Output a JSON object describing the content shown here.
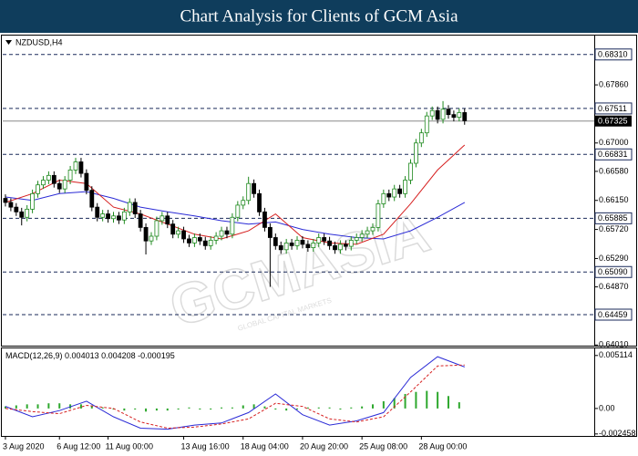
{
  "header": {
    "title": "Chart Analysis for Clients of GCM Asia"
  },
  "watermark": {
    "brand": "GCMASIA",
    "tagline": "GLOBAL CAPITAL MARKETS"
  },
  "chart_data": [
    {
      "type": "candlestick",
      "symbol": "NZDUSD,H4",
      "bull_color": "#1f8a1f",
      "bear_color": "#000000",
      "open": [
        0.6618,
        0.6612,
        0.6605,
        0.6598,
        0.659,
        0.6602,
        0.6625,
        0.6638,
        0.6645,
        0.6652,
        0.664,
        0.6632,
        0.6645,
        0.666,
        0.6672,
        0.6655,
        0.663,
        0.6605,
        0.659,
        0.6595,
        0.6588,
        0.6592,
        0.6586,
        0.6598,
        0.6612,
        0.6595,
        0.6575,
        0.6555,
        0.6562,
        0.6585,
        0.6592,
        0.658,
        0.6565,
        0.657,
        0.6558,
        0.6552,
        0.656,
        0.6555,
        0.6548,
        0.6556,
        0.6562,
        0.657,
        0.6565,
        0.659,
        0.6608,
        0.6615,
        0.664,
        0.6625,
        0.6598,
        0.6575,
        0.656,
        0.6548,
        0.6542,
        0.6552,
        0.6548,
        0.6556,
        0.655,
        0.6545,
        0.6552,
        0.656,
        0.6555,
        0.6548,
        0.6542,
        0.655,
        0.6547,
        0.6556,
        0.656,
        0.6565,
        0.657,
        0.6575,
        0.661,
        0.6625,
        0.662,
        0.6632,
        0.6625,
        0.6645,
        0.667,
        0.67,
        0.6715,
        0.674,
        0.6748,
        0.6735,
        0.675,
        0.6742,
        0.6738,
        0.6745
      ],
      "high": [
        0.6624,
        0.6618,
        0.6611,
        0.6604,
        0.6608,
        0.6631,
        0.6644,
        0.6651,
        0.6658,
        0.6658,
        0.6646,
        0.6651,
        0.6666,
        0.6678,
        0.6678,
        0.6661,
        0.6636,
        0.6611,
        0.6601,
        0.6601,
        0.6598,
        0.6598,
        0.6604,
        0.6618,
        0.6618,
        0.6601,
        0.6581,
        0.6568,
        0.6591,
        0.6598,
        0.6598,
        0.6586,
        0.6576,
        0.6576,
        0.6564,
        0.6566,
        0.6566,
        0.6561,
        0.6562,
        0.6568,
        0.6576,
        0.6576,
        0.6596,
        0.6614,
        0.6621,
        0.665,
        0.6646,
        0.6631,
        0.6604,
        0.6581,
        0.6566,
        0.6554,
        0.6558,
        0.6558,
        0.6562,
        0.6562,
        0.6556,
        0.6558,
        0.6566,
        0.6566,
        0.6561,
        0.6554,
        0.6556,
        0.6556,
        0.6562,
        0.6566,
        0.6571,
        0.6576,
        0.6581,
        0.6616,
        0.6631,
        0.6631,
        0.6638,
        0.6638,
        0.6651,
        0.6676,
        0.6706,
        0.6721,
        0.6746,
        0.6754,
        0.6754,
        0.6762,
        0.6756,
        0.6748,
        0.6751,
        0.6751
      ],
      "low": [
        0.6606,
        0.6599,
        0.6592,
        0.6578,
        0.6584,
        0.6596,
        0.6619,
        0.6632,
        0.6639,
        0.6634,
        0.6626,
        0.6626,
        0.6639,
        0.6654,
        0.6649,
        0.6624,
        0.6599,
        0.6584,
        0.6584,
        0.6582,
        0.6582,
        0.658,
        0.658,
        0.6592,
        0.6589,
        0.6569,
        0.6535,
        0.6549,
        0.6556,
        0.6579,
        0.6574,
        0.6559,
        0.6559,
        0.6552,
        0.6546,
        0.6546,
        0.6549,
        0.6542,
        0.6542,
        0.655,
        0.6556,
        0.6559,
        0.6559,
        0.6584,
        0.6602,
        0.6609,
        0.6619,
        0.6592,
        0.6569,
        0.6487,
        0.6542,
        0.6536,
        0.6536,
        0.6542,
        0.6542,
        0.6544,
        0.6539,
        0.6539,
        0.6546,
        0.6549,
        0.6542,
        0.6536,
        0.6536,
        0.6541,
        0.6541,
        0.655,
        0.6554,
        0.6559,
        0.6564,
        0.6569,
        0.6604,
        0.6614,
        0.6614,
        0.6619,
        0.6619,
        0.6639,
        0.6664,
        0.6694,
        0.6709,
        0.6734,
        0.6729,
        0.6729,
        0.6736,
        0.6732,
        0.6732,
        0.6727
      ],
      "close": [
        0.6612,
        0.6605,
        0.6598,
        0.659,
        0.6602,
        0.6625,
        0.6638,
        0.6645,
        0.6652,
        0.664,
        0.6632,
        0.6645,
        0.666,
        0.6672,
        0.6655,
        0.663,
        0.6605,
        0.659,
        0.6595,
        0.6588,
        0.6592,
        0.6586,
        0.6598,
        0.6612,
        0.6595,
        0.6575,
        0.6555,
        0.6562,
        0.6585,
        0.6592,
        0.658,
        0.6565,
        0.657,
        0.6558,
        0.6552,
        0.656,
        0.6555,
        0.6548,
        0.6556,
        0.6562,
        0.657,
        0.6565,
        0.659,
        0.6608,
        0.6615,
        0.664,
        0.6625,
        0.6598,
        0.6575,
        0.656,
        0.6548,
        0.6542,
        0.6552,
        0.6548,
        0.6556,
        0.655,
        0.6545,
        0.6552,
        0.656,
        0.6555,
        0.6548,
        0.6542,
        0.655,
        0.6547,
        0.6556,
        0.656,
        0.6565,
        0.657,
        0.6575,
        0.661,
        0.6625,
        0.662,
        0.6632,
        0.6625,
        0.6645,
        0.667,
        0.67,
        0.6715,
        0.674,
        0.6748,
        0.6735,
        0.675,
        0.6742,
        0.6738,
        0.6745,
        0.6733
      ],
      "series": [
        {
          "color": "#2b2bd6",
          "x": [
            0,
            5,
            10,
            15,
            20,
            25,
            30,
            35,
            40,
            45,
            50,
            55,
            60,
            65,
            70,
            75,
            80,
            85
          ],
          "values": [
            0.662,
            0.6615,
            0.6625,
            0.6628,
            0.6618,
            0.6605,
            0.6598,
            0.6592,
            0.6585,
            0.658,
            0.6583,
            0.6572,
            0.6565,
            0.656,
            0.6558,
            0.657,
            0.659,
            0.6612
          ]
        },
        {
          "color": "#d62020",
          "x": [
            0,
            5,
            10,
            15,
            20,
            25,
            30,
            35,
            40,
            45,
            50,
            55,
            60,
            65,
            70,
            75,
            80,
            85
          ],
          "values": [
            0.6612,
            0.6625,
            0.6645,
            0.664,
            0.6605,
            0.6595,
            0.658,
            0.6565,
            0.6558,
            0.657,
            0.6595,
            0.656,
            0.6552,
            0.655,
            0.6565,
            0.661,
            0.666,
            0.6697
          ]
        }
      ],
      "levels": [
        {
          "value": 0.6831,
          "label": "0.68310"
        },
        {
          "value": 0.67511,
          "label": "0.67511"
        },
        {
          "value": 0.66831,
          "label": "0.66831"
        },
        {
          "value": 0.65885,
          "label": "0.65885"
        },
        {
          "value": 0.6509,
          "label": "0.65090"
        },
        {
          "value": 0.64459,
          "label": "0.64459"
        }
      ],
      "current_price": 0.67325,
      "xlim": [
        -0.5,
        109
      ],
      "ylim": [
        0.64,
        0.6859
      ],
      "yticks": [
        {
          "value": 0.6786,
          "label": "0.67860"
        },
        {
          "value": 0.67,
          "label": "0.67000"
        },
        {
          "value": 0.6658,
          "label": "0.66580"
        },
        {
          "value": 0.6615,
          "label": "0.66150"
        },
        {
          "value": 0.6572,
          "label": "0.65720"
        },
        {
          "value": 0.6529,
          "label": "0.65290"
        },
        {
          "value": 0.6487,
          "label": "0.64870"
        },
        {
          "value": 0.6401,
          "label": "0.64010"
        }
      ]
    },
    {
      "type": "macd",
      "indicator": "MACD(12,26,9)",
      "readout": [
        0.004013,
        0.004208,
        -0.000195
      ],
      "histogram": {
        "color": "#2ea82e",
        "x": [
          0,
          2,
          4,
          6,
          8,
          10,
          12,
          14,
          16,
          18,
          20,
          22,
          24,
          26,
          28,
          30,
          32,
          34,
          36,
          38,
          40,
          42,
          44,
          46,
          48,
          50,
          52,
          54,
          56,
          58,
          60,
          62,
          64,
          66,
          68,
          70,
          72,
          74,
          76,
          78,
          80,
          82,
          84
        ],
        "values": [
          0.0002,
          0.0003,
          0.0004,
          0.0004,
          0.0005,
          0.0005,
          0.0004,
          0.0004,
          0.0003,
          0.0001,
          -0.0001,
          -0.0002,
          -0.0001,
          -0.0003,
          -0.0002,
          -0.0002,
          -0.0001,
          0.0001,
          -0.0001,
          -0.0001,
          0.0001,
          0.0001,
          0.0003,
          0.0004,
          0.0002,
          -0.0001,
          -0.0002,
          -0.0001,
          0.0001,
          0.0001,
          0.0001,
          -0.0001,
          0.0001,
          0.0002,
          0.0004,
          0.0007,
          0.001,
          0.0014,
          0.0016,
          0.0017,
          0.0016,
          0.0012,
          0.0006
        ]
      },
      "series": [
        {
          "color": "#2b2bd6",
          "dashed": false,
          "x": [
            0,
            5,
            10,
            15,
            20,
            25,
            30,
            35,
            40,
            45,
            50,
            55,
            60,
            65,
            70,
            75,
            80,
            85
          ],
          "values": [
            0.0002,
            -0.0008,
            -0.0002,
            0.0007,
            -0.0008,
            -0.0019,
            -0.002,
            -0.0016,
            -0.0014,
            -0.0004,
            0.0014,
            -0.0006,
            -0.0016,
            -0.0012,
            -0.0004,
            0.003,
            0.005,
            0.004
          ]
        },
        {
          "color": "#d62020",
          "dashed": true,
          "x": [
            0,
            5,
            10,
            15,
            20,
            25,
            30,
            35,
            40,
            45,
            50,
            55,
            60,
            65,
            70,
            75,
            80,
            85
          ],
          "values": [
            0.0,
            -0.0003,
            -0.0005,
            0.0003,
            0.0,
            -0.0013,
            -0.0019,
            -0.0018,
            -0.0015,
            -0.001,
            0.0005,
            0.0002,
            -0.001,
            -0.0013,
            -0.0008,
            0.0016,
            0.0041,
            0.0042
          ]
        }
      ],
      "xlim": [
        -0.5,
        109
      ],
      "ylim": [
        -0.00265,
        0.0058
      ],
      "yticks": [
        0.005114,
        {
          "value": 0,
          "label": "0.00"
        },
        -0.002458
      ],
      "xticks": [
        {
          "value": 0,
          "label": "3 Aug 2020"
        },
        {
          "value": 10,
          "label": "6 Aug 12:00"
        },
        {
          "value": 19,
          "label": "11 Aug 00:00"
        },
        {
          "value": 33,
          "label": "13 Aug 16:00"
        },
        {
          "value": 44,
          "label": "18 Aug 04:00"
        },
        {
          "value": 55,
          "label": "20 Aug 20:00"
        },
        {
          "value": 66,
          "label": "25 Aug 08:00"
        },
        {
          "value": 77,
          "label": "28 Aug 00:00"
        }
      ]
    }
  ]
}
